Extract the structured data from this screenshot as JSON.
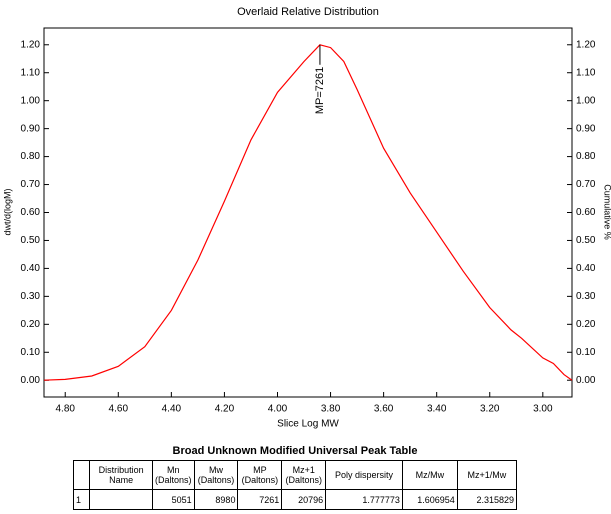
{
  "chart_data": {
    "type": "line",
    "title": "Overlaid Relative Distribution",
    "x_label": "Slice Log MW",
    "y_label": "dwt/d(logM)",
    "y2_label": "Cumulative %",
    "annotation": "MP=7261",
    "x": [
      4.88,
      4.8,
      4.7,
      4.6,
      4.5,
      4.4,
      4.3,
      4.2,
      4.1,
      4.0,
      3.9,
      3.84,
      3.8,
      3.75,
      3.7,
      3.6,
      3.5,
      3.4,
      3.3,
      3.2,
      3.12,
      3.08,
      3.0,
      2.96,
      2.92,
      2.89
    ],
    "series": [
      {
        "color": "#ff0000",
        "values": [
          0.0,
          0.003,
          0.015,
          0.05,
          0.12,
          0.25,
          0.43,
          0.64,
          0.86,
          1.03,
          1.14,
          1.2,
          1.19,
          1.14,
          1.04,
          0.83,
          0.67,
          0.53,
          0.39,
          0.26,
          0.18,
          0.15,
          0.08,
          0.06,
          0.02,
          0.0
        ]
      }
    ],
    "xlim": [
      4.88,
      2.89
    ],
    "xticks": [
      {
        "value": 4.8,
        "label": "4.80"
      },
      {
        "value": 4.6,
        "label": "4.60"
      },
      {
        "value": 4.4,
        "label": "4.40"
      },
      {
        "value": 4.2,
        "label": "4.20"
      },
      {
        "value": 4.0,
        "label": "4.00"
      },
      {
        "value": 3.8,
        "label": "3.80"
      },
      {
        "value": 3.6,
        "label": "3.60"
      },
      {
        "value": 3.4,
        "label": "3.40"
      },
      {
        "value": 3.2,
        "label": "3.20"
      },
      {
        "value": 3.0,
        "label": "3.00"
      }
    ],
    "ylim": [
      -0.06,
      1.26
    ],
    "yticks": [
      {
        "value": 0,
        "label": "0.00"
      },
      {
        "value": 0.1,
        "label": "0.10"
      },
      {
        "value": 0.2,
        "label": "0.20"
      },
      {
        "value": 0.3,
        "label": "0.30"
      },
      {
        "value": 0.4,
        "label": "0.40"
      },
      {
        "value": 0.5,
        "label": "0.50"
      },
      {
        "value": 0.6,
        "label": "0.60"
      },
      {
        "value": 0.7,
        "label": "0.70"
      },
      {
        "value": 0.8,
        "label": "0.80"
      },
      {
        "value": 0.9,
        "label": "0.90"
      },
      {
        "value": 1.0,
        "label": "1.00"
      },
      {
        "value": 1.1,
        "label": "1.10"
      },
      {
        "value": 1.2,
        "label": "1.20"
      }
    ],
    "y2lim": [
      -0.06,
      1.26
    ],
    "y2ticks": [
      {
        "value": 0,
        "label": "0.00"
      },
      {
        "value": 0.1,
        "label": "0.10"
      },
      {
        "value": 0.2,
        "label": "0.20"
      },
      {
        "value": 0.3,
        "label": "0.30"
      },
      {
        "value": 0.4,
        "label": "0.40"
      },
      {
        "value": 0.5,
        "label": "0.50"
      },
      {
        "value": 0.6,
        "label": "0.60"
      },
      {
        "value": 0.7,
        "label": "0.70"
      },
      {
        "value": 0.8,
        "label": "0.80"
      },
      {
        "value": 0.9,
        "label": "0.90"
      },
      {
        "value": 1.0,
        "label": "1.00"
      },
      {
        "value": 1.1,
        "label": "1.10"
      },
      {
        "value": 1.2,
        "label": "1.20"
      }
    ]
  },
  "table": {
    "title": "Broad Unknown Modified Universal Peak Table",
    "headers": [
      "",
      "Distribution Name",
      "Mn (Daltons)",
      "Mw (Daltons)",
      "MP (Daltons)",
      "Mz+1 (Daltons)",
      "Poly dispersity",
      "Mz/Mw",
      "Mz+1/Mw"
    ],
    "rows": [
      [
        "1",
        "",
        "5051",
        "8980",
        "7261",
        "20796",
        "1.777773",
        "1.606954",
        "2.315829"
      ]
    ]
  }
}
